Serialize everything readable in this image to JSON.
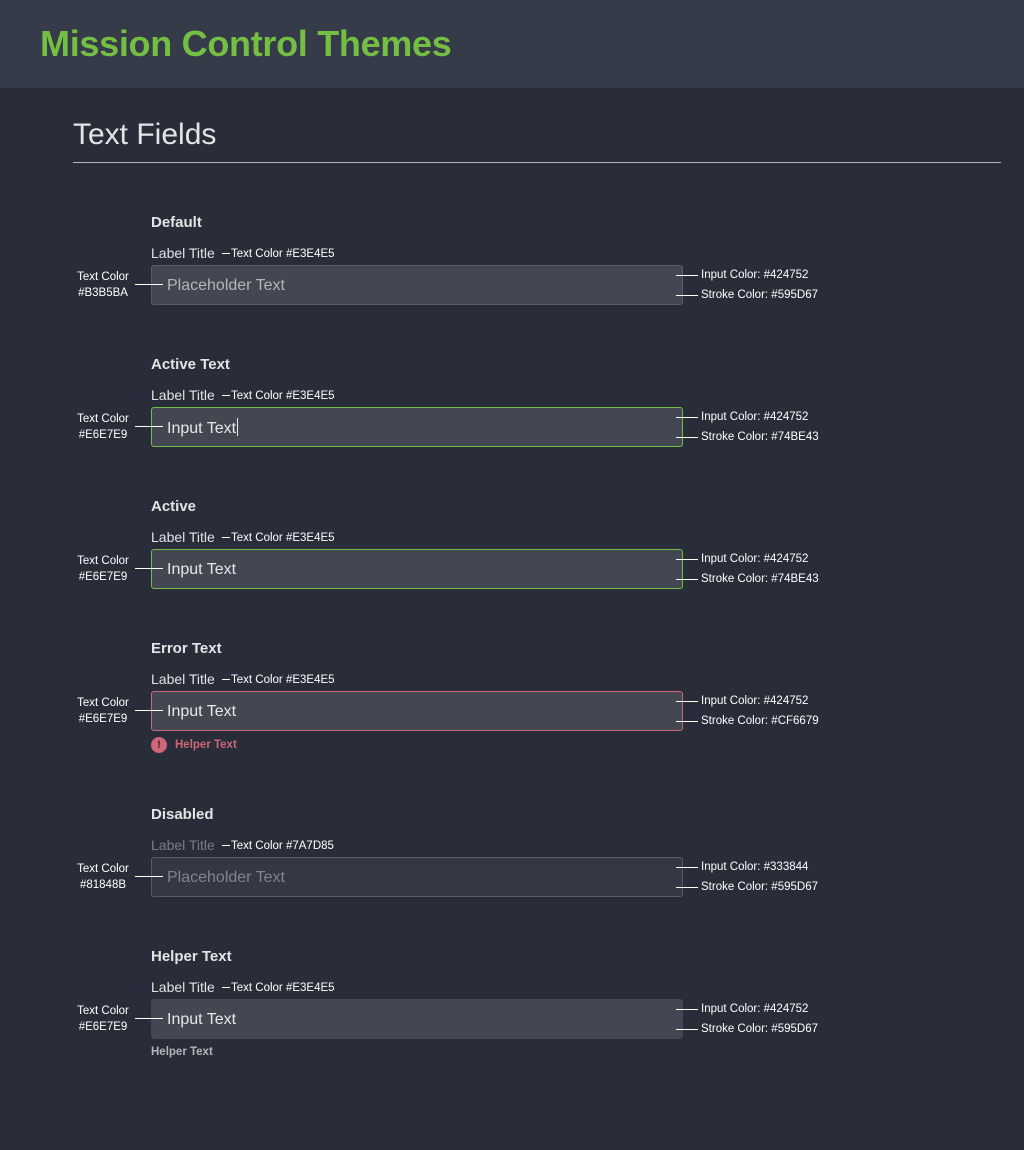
{
  "header": {
    "title": "Mission Control Themes"
  },
  "section": {
    "title": "Text Fields"
  },
  "groups": [
    {
      "heading": "Default",
      "label": "Label Title",
      "label_note": "Text Color #E3E4E5",
      "input_text": "Placeholder Text",
      "left_note_1": "Text Color",
      "left_note_2": "#B3B5BA",
      "right_note_1": "Input Color: #424752",
      "right_note_2": "Stroke Color: #595D67"
    },
    {
      "heading": "Active Text",
      "label": "Label Title",
      "label_note": "Text Color #E3E4E5",
      "input_text": "Input Text",
      "left_note_1": "Text Color",
      "left_note_2": "#E6E7E9",
      "right_note_1": "Input Color: #424752",
      "right_note_2": "Stroke Color: #74BE43"
    },
    {
      "heading": "Active",
      "label": "Label Title",
      "label_note": "Text Color #E3E4E5",
      "input_text": "Input Text",
      "left_note_1": "Text Color",
      "left_note_2": "#E6E7E9",
      "right_note_1": "Input Color: #424752",
      "right_note_2": "Stroke Color: #74BE43"
    },
    {
      "heading": "Error Text",
      "label": "Label Title",
      "label_note": "Text Color #E3E4E5",
      "input_text": "Input Text",
      "left_note_1": "Text Color",
      "left_note_2": "#E6E7E9",
      "right_note_1": "Input Color: #424752",
      "right_note_2": "Stroke Color: #CF6679",
      "helper_text": "Helper Text",
      "helper_icon": "!"
    },
    {
      "heading": "Disabled",
      "label": "Label Title",
      "label_note": "Text Color #7A7D85",
      "input_text": "Placeholder Text",
      "left_note_1": "Text Color",
      "left_note_2": "#81848B",
      "right_note_1": "Input Color: #333844",
      "right_note_2": "Stroke Color: #595D67"
    },
    {
      "heading": "Helper Text",
      "label": "Label Title",
      "label_note": "Text Color #E3E4E5",
      "input_text": "Input Text",
      "left_note_1": "Text Color",
      "left_note_2": "#E6E7E9",
      "right_note_1": "Input Color: #424752",
      "right_note_2": "Stroke Color: #595D67",
      "helper_text": "Helper Text"
    }
  ],
  "colors": {
    "accent_green": "#74BE43",
    "error_red": "#CF6679",
    "background": "#282D39",
    "header_bg": "#363B49",
    "input_bg": "#424752",
    "input_bg_disabled": "#333844",
    "stroke_default": "#595D67"
  }
}
